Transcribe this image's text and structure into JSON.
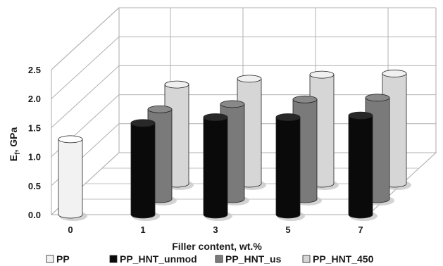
{
  "chart_data": {
    "type": "bar",
    "style": "3d-cylinder",
    "categories": [
      "0",
      "1",
      "3",
      "5",
      "7"
    ],
    "series": [
      {
        "name": "PP",
        "values": [
          1.3,
          null,
          null,
          null,
          null
        ],
        "color": "#f2f2f2"
      },
      {
        "name": "PP_HNT_unmod",
        "values": [
          null,
          1.58,
          1.68,
          1.68,
          1.71
        ],
        "color": "#0a0a0a"
      },
      {
        "name": "PP_HNT_us",
        "values": [
          null,
          1.55,
          1.64,
          1.72,
          1.75
        ],
        "color": "#7a7a7a"
      },
      {
        "name": "PP_HNT_450",
        "values": [
          null,
          1.71,
          1.81,
          1.88,
          1.9
        ],
        "color": "#d6d6d6"
      }
    ],
    "ylabel_main": "E",
    "ylabel_sub": "f",
    "ylabel_rest": ", GPa",
    "xlabel": "Filler content, wt.%",
    "ylim": [
      0,
      2.5
    ],
    "yticks": [
      "0.0",
      "0.5",
      "1.0",
      "1.5",
      "2.0",
      "2.5"
    ],
    "grid": true,
    "legend_position": "bottom"
  }
}
